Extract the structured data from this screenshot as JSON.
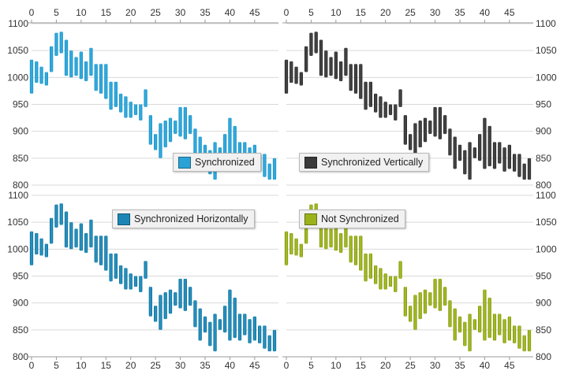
{
  "colors": {
    "background": "#ffffff",
    "grid": "#d9d9d9",
    "axis_text": "#333333"
  },
  "base_series": [
    {
      "x": 0,
      "low": 970,
      "high": 1033
    },
    {
      "x": 1,
      "low": 990,
      "high": 1030
    },
    {
      "x": 2,
      "low": 988,
      "high": 1020
    },
    {
      "x": 3,
      "low": 985,
      "high": 1010
    },
    {
      "x": 4,
      "low": 1010,
      "high": 1058
    },
    {
      "x": 5,
      "low": 1040,
      "high": 1083
    },
    {
      "x": 6,
      "low": 1045,
      "high": 1085
    },
    {
      "x": 7,
      "low": 1003,
      "high": 1070
    },
    {
      "x": 8,
      "low": 1000,
      "high": 1050
    },
    {
      "x": 9,
      "low": 1003,
      "high": 1038
    },
    {
      "x": 10,
      "low": 997,
      "high": 1048
    },
    {
      "x": 11,
      "low": 993,
      "high": 1030
    },
    {
      "x": 12,
      "low": 1003,
      "high": 1055
    },
    {
      "x": 13,
      "low": 975,
      "high": 1025
    },
    {
      "x": 14,
      "low": 970,
      "high": 1025
    },
    {
      "x": 15,
      "low": 960,
      "high": 1025
    },
    {
      "x": 16,
      "low": 940,
      "high": 992
    },
    {
      "x": 17,
      "low": 945,
      "high": 992
    },
    {
      "x": 18,
      "low": 935,
      "high": 970
    },
    {
      "x": 19,
      "low": 925,
      "high": 965
    },
    {
      "x": 20,
      "low": 925,
      "high": 955
    },
    {
      "x": 21,
      "low": 930,
      "high": 950
    },
    {
      "x": 22,
      "low": 920,
      "high": 950
    },
    {
      "x": 23,
      "low": 945,
      "high": 978
    },
    {
      "x": 24,
      "low": 875,
      "high": 930
    },
    {
      "x": 25,
      "low": 865,
      "high": 895
    },
    {
      "x": 26,
      "low": 850,
      "high": 915
    },
    {
      "x": 27,
      "low": 870,
      "high": 920
    },
    {
      "x": 28,
      "low": 880,
      "high": 925
    },
    {
      "x": 29,
      "low": 895,
      "high": 920
    },
    {
      "x": 30,
      "low": 890,
      "high": 945
    },
    {
      "x": 31,
      "low": 885,
      "high": 945
    },
    {
      "x": 32,
      "low": 895,
      "high": 930
    },
    {
      "x": 33,
      "low": 855,
      "high": 905
    },
    {
      "x": 34,
      "low": 830,
      "high": 890
    },
    {
      "x": 35,
      "low": 845,
      "high": 875
    },
    {
      "x": 36,
      "low": 820,
      "high": 865
    },
    {
      "x": 37,
      "low": 810,
      "high": 880
    },
    {
      "x": 38,
      "low": 850,
      "high": 870
    },
    {
      "x": 39,
      "low": 845,
      "high": 895
    },
    {
      "x": 40,
      "low": 830,
      "high": 925
    },
    {
      "x": 41,
      "low": 835,
      "high": 910
    },
    {
      "x": 42,
      "low": 830,
      "high": 880
    },
    {
      "x": 43,
      "low": 840,
      "high": 880
    },
    {
      "x": 44,
      "low": 825,
      "high": 870
    },
    {
      "x": 45,
      "low": 830,
      "high": 875
    },
    {
      "x": 46,
      "low": 825,
      "high": 858
    },
    {
      "x": 47,
      "low": 815,
      "high": 858
    },
    {
      "x": 48,
      "low": 810,
      "high": 840
    },
    {
      "x": 49,
      "low": 810,
      "high": 850
    }
  ],
  "chart_data": [
    {
      "type": "bar",
      "subtype": "range-column",
      "legend": "Synchronized",
      "legend_placement": "bottom-right",
      "color": "#2aa2d6",
      "xlim": [
        0,
        49
      ],
      "ylim": [
        800,
        1100
      ],
      "x_ticks": [
        0,
        5,
        10,
        15,
        20,
        25,
        30,
        35,
        40,
        45
      ],
      "y_ticks": [
        800,
        850,
        900,
        950,
        1000,
        1050,
        1100
      ],
      "x_axis_position": "top",
      "y_axis_position": "left",
      "grid": "horizontal",
      "data_ref": "base_series"
    },
    {
      "type": "bar",
      "subtype": "range-column",
      "legend": "Synchronized Vertically",
      "legend_placement": "bottom-right",
      "color": "#3a3a3a",
      "xlim": [
        0,
        49
      ],
      "ylim": [
        800,
        1100
      ],
      "x_ticks": [
        0,
        5,
        10,
        15,
        20,
        25,
        30,
        35,
        40,
        45
      ],
      "y_ticks": [
        800,
        850,
        900,
        950,
        1000,
        1050,
        1100
      ],
      "x_axis_position": "top",
      "y_axis_position": "right",
      "grid": "horizontal",
      "data_ref": "base_series"
    },
    {
      "type": "bar",
      "subtype": "range-column",
      "legend": "Synchronized Horizontally",
      "legend_placement": "top-right",
      "color": "#1b86b5",
      "xlim": [
        0,
        49
      ],
      "ylim": [
        800,
        1100
      ],
      "x_ticks": [
        0,
        5,
        10,
        15,
        20,
        25,
        30,
        35,
        40,
        45
      ],
      "y_ticks": [
        800,
        850,
        900,
        950,
        1000,
        1050,
        1100
      ],
      "x_axis_position": "bottom",
      "y_axis_position": "left",
      "grid": "horizontal",
      "data_ref": "base_series"
    },
    {
      "type": "bar",
      "subtype": "range-column",
      "legend": "Not Synchronized",
      "legend_placement": "top-right",
      "color": "#9bb21a",
      "xlim": [
        0,
        49
      ],
      "ylim": [
        800,
        1100
      ],
      "x_ticks": [
        0,
        5,
        10,
        15,
        20,
        25,
        30,
        35,
        40,
        45
      ],
      "y_ticks": [
        800,
        850,
        900,
        950,
        1000,
        1050,
        1100
      ],
      "x_axis_position": "bottom",
      "y_axis_position": "right",
      "grid": "horizontal",
      "data_ref": "base_series"
    }
  ]
}
